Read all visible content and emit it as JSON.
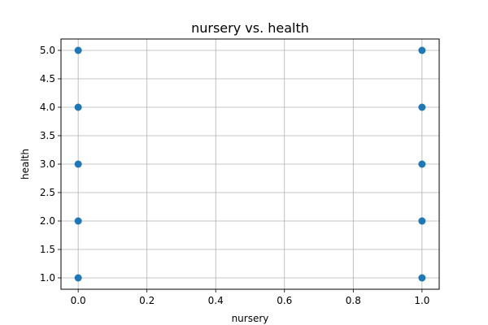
{
  "chart_data": {
    "type": "scatter",
    "title": "nursery vs. health",
    "xlabel": "nursery",
    "ylabel": "health",
    "xlim": [
      -0.05,
      1.05
    ],
    "ylim": [
      0.8,
      5.2
    ],
    "xticks": [
      0.0,
      0.2,
      0.4,
      0.6,
      0.8,
      1.0
    ],
    "xtick_labels": [
      "0.0",
      "0.2",
      "0.4",
      "0.6",
      "0.8",
      "1.0"
    ],
    "yticks": [
      1.0,
      1.5,
      2.0,
      2.5,
      3.0,
      3.5,
      4.0,
      4.5,
      5.0
    ],
    "ytick_labels": [
      "1.0",
      "1.5",
      "2.0",
      "2.5",
      "3.0",
      "3.5",
      "4.0",
      "4.5",
      "5.0"
    ],
    "grid": true,
    "series": [
      {
        "color": "#1f77b4",
        "points": [
          {
            "x": 0,
            "y": 1
          },
          {
            "x": 0,
            "y": 2
          },
          {
            "x": 0,
            "y": 3
          },
          {
            "x": 0,
            "y": 4
          },
          {
            "x": 0,
            "y": 5
          },
          {
            "x": 1,
            "y": 1
          },
          {
            "x": 1,
            "y": 2
          },
          {
            "x": 1,
            "y": 3
          },
          {
            "x": 1,
            "y": 4
          },
          {
            "x": 1,
            "y": 5
          }
        ]
      }
    ]
  }
}
